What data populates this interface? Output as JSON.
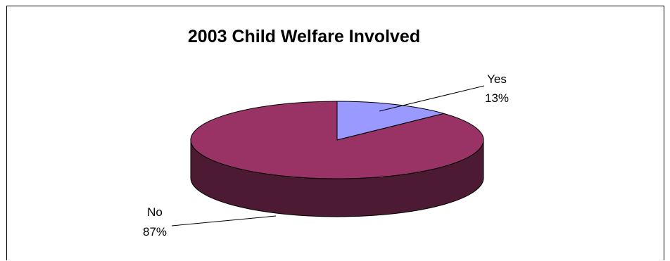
{
  "chart_data": {
    "type": "pie",
    "style": "3d",
    "title": "2003 Child Welfare Involved",
    "slices": [
      {
        "name": "Yes",
        "percent_label": "13%",
        "value": 13,
        "color": "#9999ff",
        "side_color": "#4d4d80"
      },
      {
        "name": "No",
        "percent_label": "87%",
        "value": 87,
        "color": "#993366",
        "side_color": "#4d1a33"
      }
    ],
    "legend": "none",
    "labels": "outside with leader lines"
  }
}
